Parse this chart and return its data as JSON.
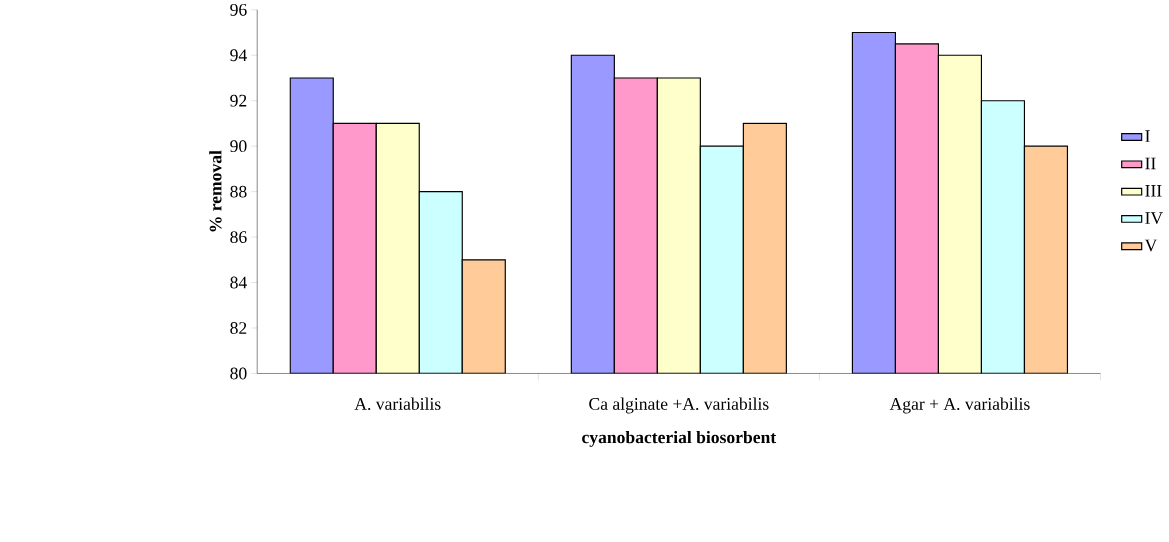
{
  "chart_data": {
    "type": "bar",
    "xlabel": "cyanobacterial biosorbent",
    "ylabel": "% removal",
    "categories": [
      "A. variabilis",
      "Ca alginate +A. variabilis",
      "Agar + A. variabilis"
    ],
    "series": [
      {
        "name": "I",
        "color": "#9999ff",
        "values": [
          93,
          94,
          95
        ]
      },
      {
        "name": "II",
        "color": "#ff99cc",
        "values": [
          91,
          93,
          94.5
        ]
      },
      {
        "name": "III",
        "color": "#ffffcc",
        "values": [
          91,
          93,
          94
        ]
      },
      {
        "name": "IV",
        "color": "#ccffff",
        "values": [
          88,
          90,
          92
        ]
      },
      {
        "name": "V",
        "color": "#ffcc99",
        "values": [
          85,
          91,
          90
        ]
      }
    ],
    "ylim": [
      80,
      96
    ],
    "yticks": [
      80,
      82,
      84,
      86,
      88,
      90,
      92,
      94,
      96
    ],
    "grid": false,
    "legend": "right"
  }
}
